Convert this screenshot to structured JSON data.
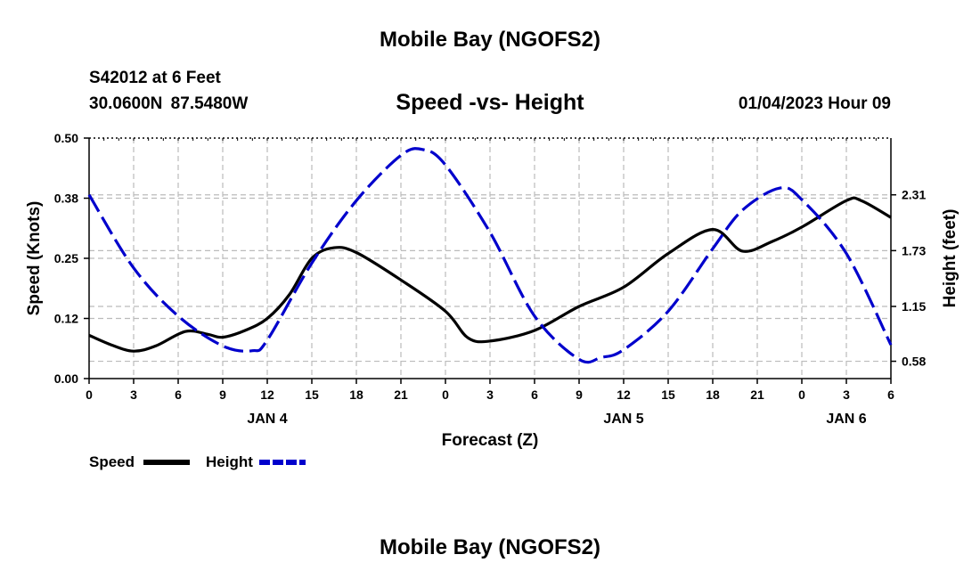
{
  "header": {
    "title_top": "Mobile Bay (NGOFS2)",
    "station": "S42012 at 6 Feet",
    "coords": "30.0600N  87.5480W",
    "subtitle": "Speed -vs- Height",
    "datetime": "01/04/2023 Hour 09",
    "title_bottom": "Mobile Bay (NGOFS2)"
  },
  "legend": {
    "speed_label": "Speed",
    "height_label": "Height"
  },
  "colors": {
    "speed": "#000000",
    "height": "#0000cc",
    "grid": "#bbbbbb"
  },
  "chart_data": {
    "type": "line",
    "xlabel": "Forecast (Z)",
    "ylabel_left": "Speed (Knots)",
    "ylabel_right": "Height (feet)",
    "x_range_hours": [
      0,
      54
    ],
    "x_ticks": [
      {
        "h": 0,
        "label": "0"
      },
      {
        "h": 3,
        "label": "3"
      },
      {
        "h": 6,
        "label": "6"
      },
      {
        "h": 9,
        "label": "9"
      },
      {
        "h": 12,
        "label": "12"
      },
      {
        "h": 15,
        "label": "15"
      },
      {
        "h": 18,
        "label": "18"
      },
      {
        "h": 21,
        "label": "21"
      },
      {
        "h": 24,
        "label": "0"
      },
      {
        "h": 27,
        "label": "3"
      },
      {
        "h": 30,
        "label": "6"
      },
      {
        "h": 33,
        "label": "9"
      },
      {
        "h": 36,
        "label": "12"
      },
      {
        "h": 39,
        "label": "15"
      },
      {
        "h": 42,
        "label": "18"
      },
      {
        "h": 45,
        "label": "21"
      },
      {
        "h": 48,
        "label": "0"
      },
      {
        "h": 51,
        "label": "3"
      },
      {
        "h": 54,
        "label": "6"
      }
    ],
    "day_labels": [
      {
        "h": 12,
        "label": "JAN 4"
      },
      {
        "h": 36,
        "label": "JAN 5"
      },
      {
        "h": 51,
        "label": "JAN 6"
      }
    ],
    "ylim_left": [
      0,
      0.5
    ],
    "y_ticks_left": [
      {
        "v": 0.0,
        "label": "0.00"
      },
      {
        "v": 0.125,
        "label": "0.12"
      },
      {
        "v": 0.25,
        "label": "0.25"
      },
      {
        "v": 0.375,
        "label": "0.38"
      },
      {
        "v": 0.5,
        "label": "0.50"
      }
    ],
    "ylim_right": [
      0.4,
      2.9
    ],
    "y_ticks_right": [
      {
        "v": 0.58,
        "label": "0.58"
      },
      {
        "v": 1.15,
        "label": "1.15"
      },
      {
        "v": 1.73,
        "label": "1.73"
      },
      {
        "v": 2.31,
        "label": "2.31"
      }
    ],
    "series": [
      {
        "name": "Speed",
        "axis": "left",
        "style": "solid",
        "points": [
          [
            0,
            0.09
          ],
          [
            1.5,
            0.07
          ],
          [
            3,
            0.057
          ],
          [
            4.5,
            0.068
          ],
          [
            6.5,
            0.098
          ],
          [
            8,
            0.092
          ],
          [
            9,
            0.086
          ],
          [
            10.5,
            0.1
          ],
          [
            12,
            0.125
          ],
          [
            13.5,
            0.175
          ],
          [
            15,
            0.25
          ],
          [
            16.5,
            0.272
          ],
          [
            18,
            0.262
          ],
          [
            21,
            0.205
          ],
          [
            24,
            0.14
          ],
          [
            25.5,
            0.085
          ],
          [
            27,
            0.078
          ],
          [
            30,
            0.1
          ],
          [
            33,
            0.15
          ],
          [
            36,
            0.19
          ],
          [
            39,
            0.26
          ],
          [
            42,
            0.31
          ],
          [
            44,
            0.265
          ],
          [
            46,
            0.285
          ],
          [
            48,
            0.315
          ],
          [
            51,
            0.37
          ],
          [
            52,
            0.37
          ],
          [
            54,
            0.335
          ]
        ]
      },
      {
        "name": "Height",
        "axis": "right",
        "style": "dashed",
        "points": [
          [
            0,
            2.31
          ],
          [
            3,
            1.55
          ],
          [
            6,
            1.05
          ],
          [
            9,
            0.74
          ],
          [
            11,
            0.69
          ],
          [
            12,
            0.8
          ],
          [
            15,
            1.6
          ],
          [
            18,
            2.25
          ],
          [
            21,
            2.72
          ],
          [
            22.5,
            2.78
          ],
          [
            24,
            2.62
          ],
          [
            27,
            1.92
          ],
          [
            30,
            1.05
          ],
          [
            33,
            0.6
          ],
          [
            34.5,
            0.62
          ],
          [
            36,
            0.7
          ],
          [
            39,
            1.1
          ],
          [
            42,
            1.75
          ],
          [
            44,
            2.15
          ],
          [
            46.5,
            2.38
          ],
          [
            48,
            2.26
          ],
          [
            51,
            1.7
          ],
          [
            54,
            0.75
          ]
        ]
      }
    ]
  }
}
